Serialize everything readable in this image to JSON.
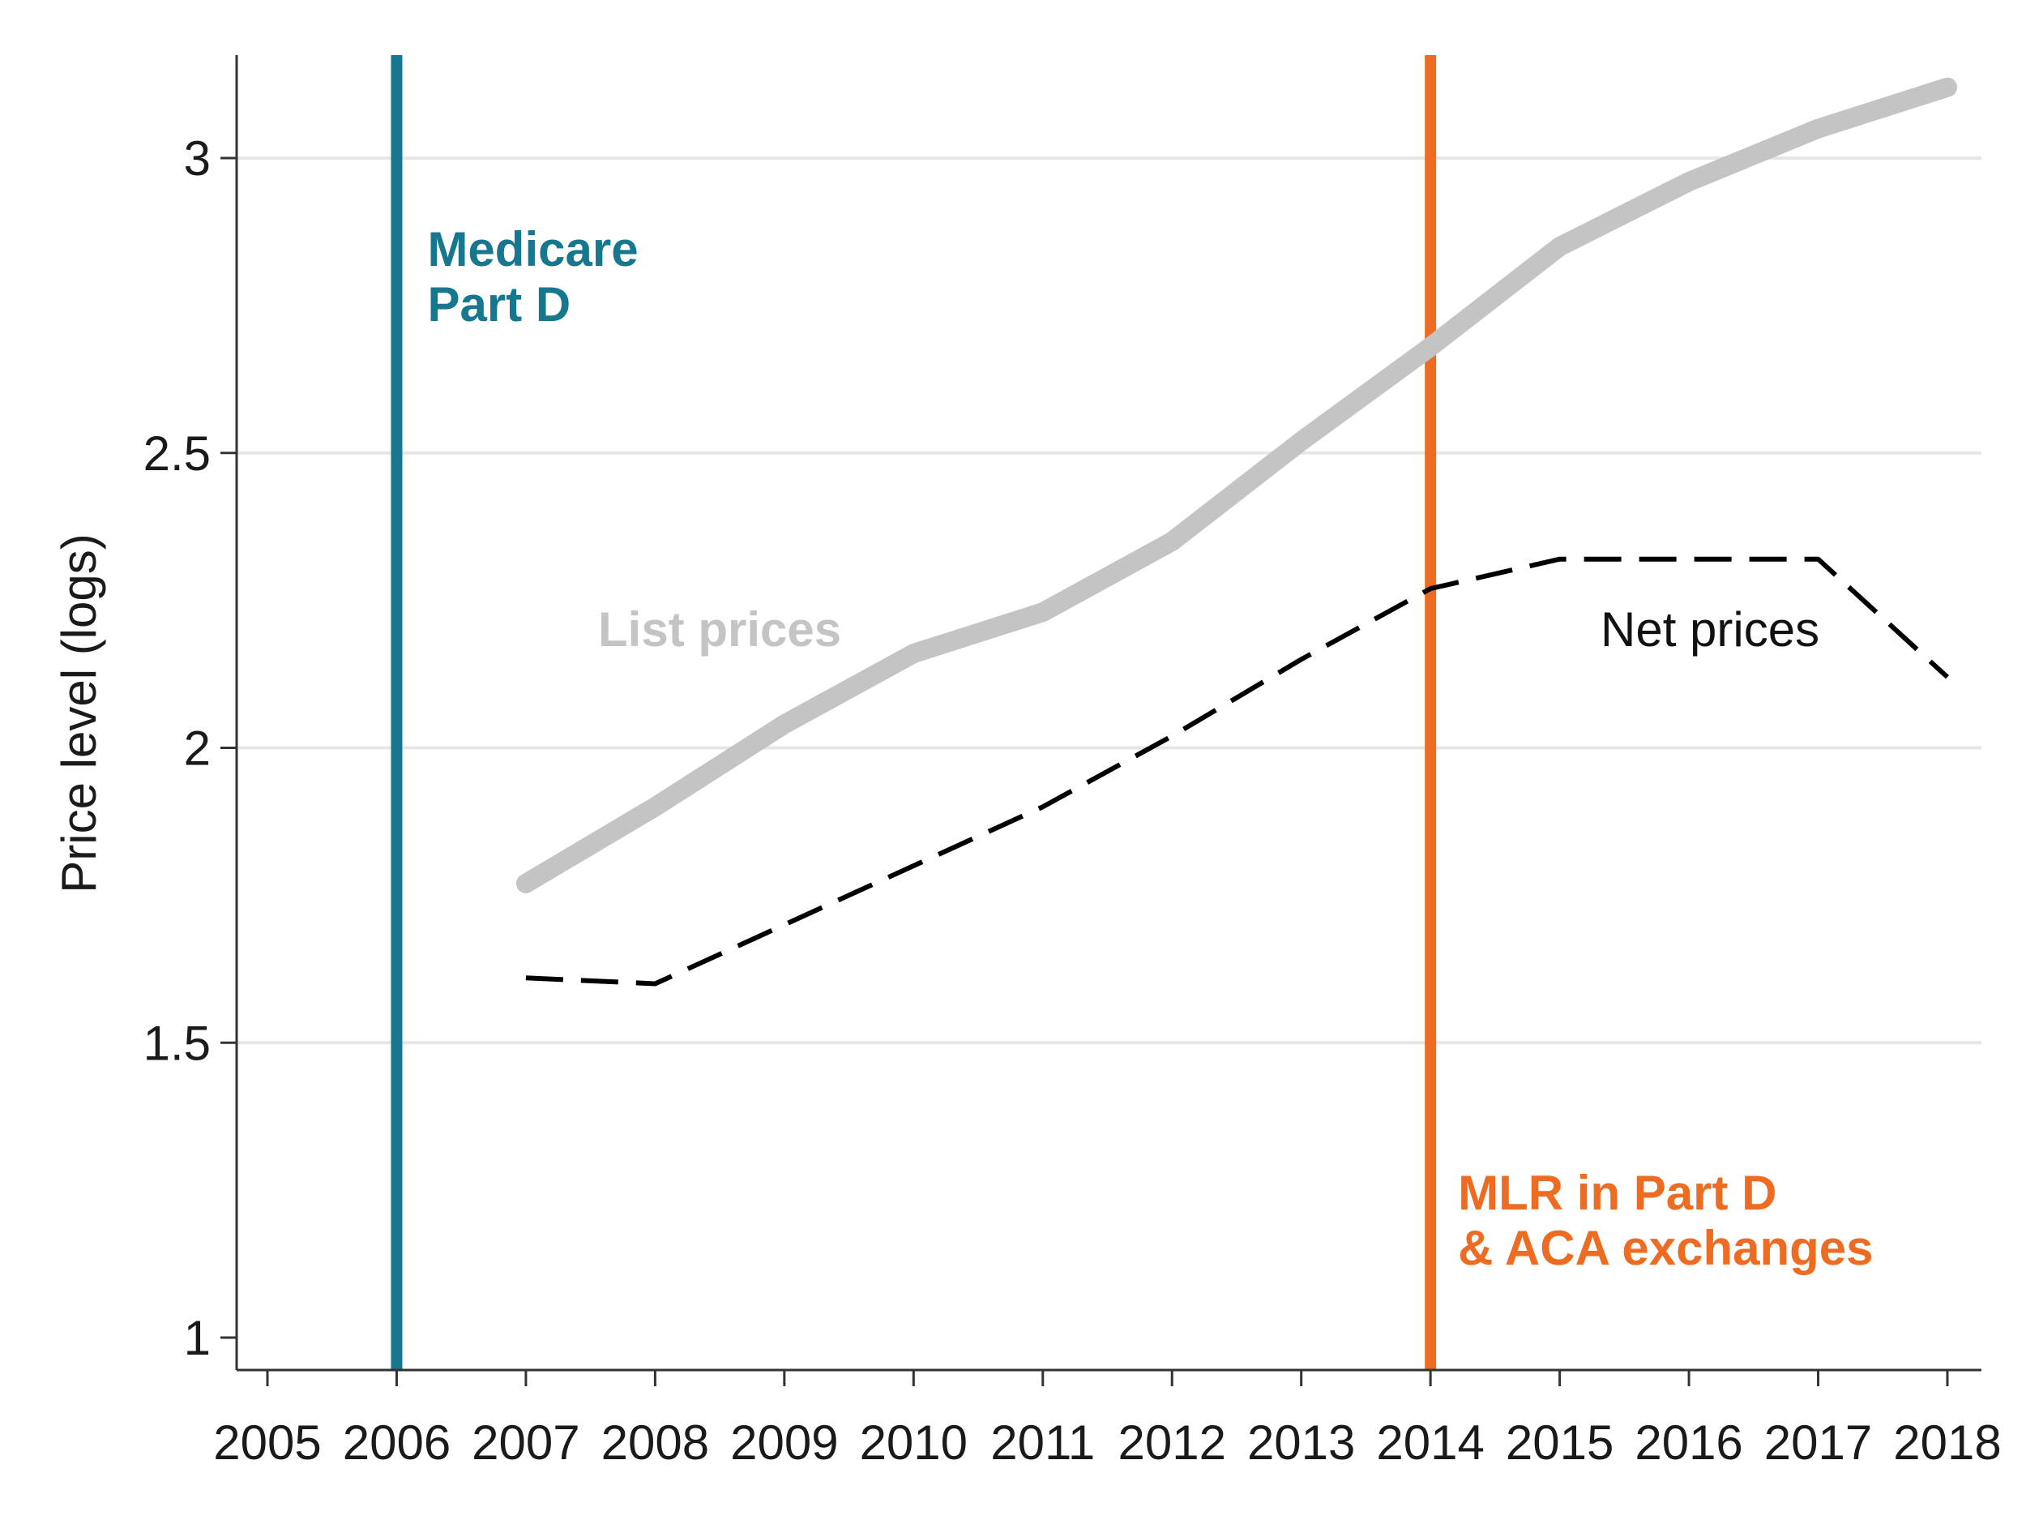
{
  "chart_data": {
    "type": "line",
    "title": "",
    "xlabel": "",
    "ylabel": "Price level (logs)",
    "xlim": [
      2005,
      2018
    ],
    "ylim": [
      1,
      3.2
    ],
    "x_ticks": [
      "2005",
      "2006",
      "2007",
      "2008",
      "2009",
      "2010",
      "2011",
      "2012",
      "2013",
      "2014",
      "2015",
      "2016",
      "2017",
      "2018"
    ],
    "y_ticks": [
      {
        "value": 1,
        "label": "1"
      },
      {
        "value": 1.5,
        "label": "1.5"
      },
      {
        "value": 2,
        "label": "2"
      },
      {
        "value": 2.5,
        "label": "2.5"
      },
      {
        "value": 3,
        "label": "3"
      }
    ],
    "grid": true,
    "x": [
      2007,
      2008,
      2009,
      2010,
      2011,
      2012,
      2013,
      2014,
      2015,
      2016,
      2017,
      2018
    ],
    "series": [
      {
        "name": "List prices",
        "color": "#c4c4c4",
        "style": "solid",
        "values": [
          1.77,
          1.9,
          2.04,
          2.16,
          2.23,
          2.35,
          2.52,
          2.68,
          2.85,
          2.96,
          3.05,
          3.12
        ]
      },
      {
        "name": "Net prices",
        "color": "#000000",
        "style": "dashed",
        "values": [
          1.61,
          1.6,
          1.7,
          1.8,
          1.9,
          2.02,
          2.15,
          2.27,
          2.32,
          2.32,
          2.32,
          2.12
        ]
      }
    ],
    "reference_lines": [
      {
        "x": 2006,
        "color": "#17778f",
        "label_lines": [
          "Medicare",
          "Part D"
        ]
      },
      {
        "x": 2014,
        "color": "#ee6c22",
        "label_lines": [
          "MLR in Part D",
          "& ACA exchanges"
        ]
      }
    ]
  }
}
